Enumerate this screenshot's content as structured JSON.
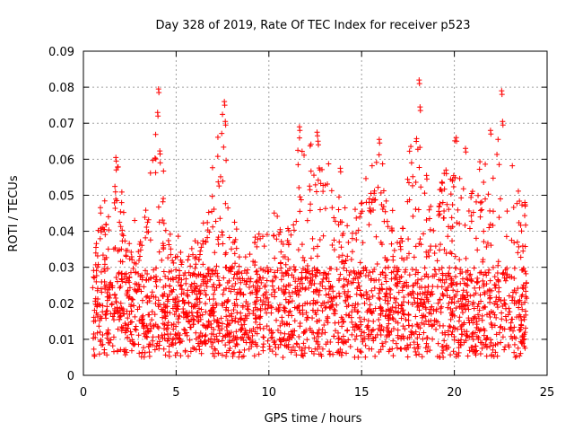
{
  "chart_data": {
    "type": "scatter",
    "title": "Day 328 of 2019, Rate Of TEC Index for receiver p523",
    "xlabel": "GPS time / hours",
    "ylabel": "ROTI / TECUs",
    "xlim": [
      0,
      25
    ],
    "ylim": [
      0,
      0.09
    ],
    "xticks": [
      0,
      5,
      10,
      15,
      20,
      25
    ],
    "xtick_labels": [
      "0",
      "5",
      "10",
      "15",
      "20",
      "25"
    ],
    "yticks": [
      0,
      0.01,
      0.02,
      0.03,
      0.04,
      0.05,
      0.06,
      0.07,
      0.08,
      0.09
    ],
    "ytick_labels": [
      "0",
      "0.01",
      "0.02",
      "0.03",
      "0.04",
      "0.05",
      "0.06",
      "0.07",
      "0.08",
      "0.09"
    ],
    "grid": true,
    "marker": "+",
    "color": "#ff0000",
    "series": [
      {
        "name": "ROTI",
        "x_range": [
          0.5,
          23.9
        ],
        "point_count": 2600,
        "baseline_range": [
          0.005,
          0.03
        ],
        "activity_envelope": [
          [
            0.5,
            0.035
          ],
          [
            1.0,
            0.05
          ],
          [
            1.5,
            0.045
          ],
          [
            1.8,
            0.06
          ],
          [
            2.5,
            0.04
          ],
          [
            3.5,
            0.055
          ],
          [
            4.0,
            0.079
          ],
          [
            4.5,
            0.045
          ],
          [
            5.5,
            0.035
          ],
          [
            6.5,
            0.045
          ],
          [
            7.5,
            0.076
          ],
          [
            8.0,
            0.045
          ],
          [
            9.0,
            0.035
          ],
          [
            10.0,
            0.05
          ],
          [
            11.0,
            0.04
          ],
          [
            11.6,
            0.069
          ],
          [
            12.6,
            0.067
          ],
          [
            13.5,
            0.058
          ],
          [
            14.5,
            0.045
          ],
          [
            15.5,
            0.06
          ],
          [
            16.0,
            0.065
          ],
          [
            17.0,
            0.04
          ],
          [
            18.0,
            0.082
          ],
          [
            18.5,
            0.055
          ],
          [
            19.5,
            0.057
          ],
          [
            20.0,
            0.066
          ],
          [
            21.0,
            0.055
          ],
          [
            22.0,
            0.068
          ],
          [
            22.5,
            0.079
          ],
          [
            23.5,
            0.05
          ],
          [
            23.9,
            0.048
          ]
        ],
        "peaks": [
          {
            "x": 1.75,
            "y": 0.0605
          },
          {
            "x": 4.05,
            "y": 0.0795
          },
          {
            "x": 4.0,
            "y": 0.073
          },
          {
            "x": 7.6,
            "y": 0.076
          },
          {
            "x": 7.65,
            "y": 0.0705
          },
          {
            "x": 11.65,
            "y": 0.069
          },
          {
            "x": 12.6,
            "y": 0.0675
          },
          {
            "x": 12.65,
            "y": 0.065
          },
          {
            "x": 13.85,
            "y": 0.0575
          },
          {
            "x": 15.95,
            "y": 0.0655
          },
          {
            "x": 18.1,
            "y": 0.082
          },
          {
            "x": 18.15,
            "y": 0.0745
          },
          {
            "x": 18.5,
            "y": 0.0555
          },
          {
            "x": 19.55,
            "y": 0.057
          },
          {
            "x": 20.1,
            "y": 0.066
          },
          {
            "x": 20.6,
            "y": 0.063
          },
          {
            "x": 21.95,
            "y": 0.068
          },
          {
            "x": 22.55,
            "y": 0.079
          },
          {
            "x": 22.6,
            "y": 0.0705
          },
          {
            "x": 23.8,
            "y": 0.048
          }
        ]
      }
    ]
  }
}
